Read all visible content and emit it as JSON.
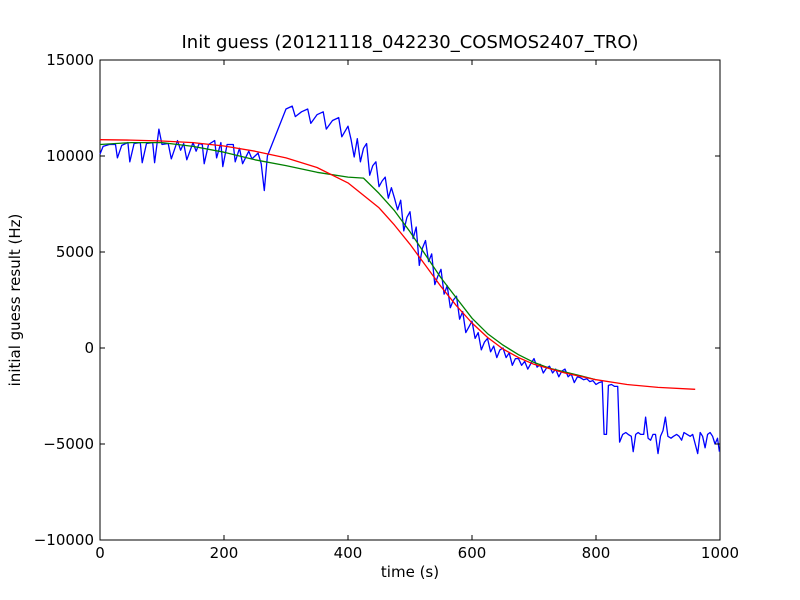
{
  "chart_data": {
    "type": "line",
    "title": "Init guess (20121118_042230_COSMOS2407_TRO)",
    "xlabel": "time (s)",
    "ylabel": "initial guess result (Hz)",
    "xlim": [
      0,
      1000
    ],
    "ylim": [
      -10000,
      15000
    ],
    "grid": false,
    "xticks": [
      0,
      200,
      400,
      600,
      800,
      1000
    ],
    "xtick_labels": [
      "0",
      "200",
      "400",
      "600",
      "800",
      "1000"
    ],
    "yticks": [
      15000,
      10000,
      5000,
      0,
      -5000,
      -10000
    ],
    "ytick_labels": [
      "15000",
      "10000",
      "5000",
      "0",
      "−5000",
      "−10000"
    ],
    "series": [
      {
        "color": "#0000ff",
        "points": [
          [
            0,
            10100
          ],
          [
            5,
            10500
          ],
          [
            15,
            10600
          ],
          [
            25,
            10600
          ],
          [
            28,
            9900
          ],
          [
            35,
            10550
          ],
          [
            45,
            10700
          ],
          [
            48,
            9700
          ],
          [
            55,
            10650
          ],
          [
            65,
            10700
          ],
          [
            68,
            9650
          ],
          [
            75,
            10650
          ],
          [
            85,
            10700
          ],
          [
            88,
            9650
          ],
          [
            95,
            11400
          ],
          [
            100,
            10600
          ],
          [
            110,
            10650
          ],
          [
            115,
            9850
          ],
          [
            125,
            10800
          ],
          [
            130,
            10300
          ],
          [
            135,
            10650
          ],
          [
            140,
            9800
          ],
          [
            150,
            10700
          ],
          [
            155,
            10250
          ],
          [
            160,
            10650
          ],
          [
            165,
            10600
          ],
          [
            168,
            9600
          ],
          [
            175,
            10600
          ],
          [
            185,
            10800
          ],
          [
            188,
            9900
          ],
          [
            195,
            10700
          ],
          [
            198,
            9450
          ],
          [
            205,
            10600
          ],
          [
            215,
            10600
          ],
          [
            218,
            9700
          ],
          [
            225,
            10400
          ],
          [
            230,
            9600
          ],
          [
            240,
            10250
          ],
          [
            245,
            9850
          ],
          [
            255,
            10150
          ],
          [
            260,
            9600
          ],
          [
            265,
            8200
          ],
          [
            270,
            10000
          ],
          [
            300,
            12450
          ],
          [
            310,
            12600
          ],
          [
            315,
            12050
          ],
          [
            325,
            12300
          ],
          [
            335,
            12450
          ],
          [
            340,
            11700
          ],
          [
            350,
            12150
          ],
          [
            360,
            12300
          ],
          [
            365,
            11400
          ],
          [
            375,
            11850
          ],
          [
            385,
            12000
          ],
          [
            390,
            11000
          ],
          [
            400,
            11550
          ],
          [
            405,
            10850
          ],
          [
            410,
            9950
          ],
          [
            415,
            10900
          ],
          [
            420,
            9700
          ],
          [
            425,
            10400
          ],
          [
            430,
            10650
          ],
          [
            435,
            9000
          ],
          [
            440,
            9500
          ],
          [
            445,
            9700
          ],
          [
            450,
            8400
          ],
          [
            455,
            8700
          ],
          [
            460,
            8900
          ],
          [
            465,
            7800
          ],
          [
            470,
            8350
          ],
          [
            475,
            7800
          ],
          [
            480,
            7200
          ],
          [
            485,
            7700
          ],
          [
            490,
            6100
          ],
          [
            495,
            6800
          ],
          [
            500,
            7100
          ],
          [
            505,
            5700
          ],
          [
            510,
            6300
          ],
          [
            515,
            4300
          ],
          [
            520,
            5200
          ],
          [
            525,
            5600
          ],
          [
            530,
            4500
          ],
          [
            535,
            4900
          ],
          [
            540,
            3300
          ],
          [
            545,
            3750
          ],
          [
            550,
            4100
          ],
          [
            555,
            2800
          ],
          [
            560,
            3250
          ],
          [
            565,
            2100
          ],
          [
            570,
            2500
          ],
          [
            575,
            2700
          ],
          [
            580,
            1500
          ],
          [
            585,
            1900
          ],
          [
            590,
            800
          ],
          [
            595,
            1100
          ],
          [
            600,
            1400
          ],
          [
            605,
            500
          ],
          [
            610,
            800
          ],
          [
            615,
            -100
          ],
          [
            620,
            300
          ],
          [
            625,
            500
          ],
          [
            630,
            -200
          ],
          [
            635,
            100
          ],
          [
            640,
            -500
          ],
          [
            645,
            -100
          ],
          [
            650,
            0
          ],
          [
            655,
            -500
          ],
          [
            660,
            -250
          ],
          [
            665,
            -900
          ],
          [
            670,
            -550
          ],
          [
            675,
            -550
          ],
          [
            680,
            -900
          ],
          [
            685,
            -700
          ],
          [
            690,
            -1100
          ],
          [
            695,
            -800
          ],
          [
            700,
            -550
          ],
          [
            705,
            -1000
          ],
          [
            710,
            -850
          ],
          [
            715,
            -1300
          ],
          [
            720,
            -1050
          ],
          [
            725,
            -950
          ],
          [
            730,
            -1300
          ],
          [
            735,
            -1100
          ],
          [
            740,
            -1500
          ],
          [
            745,
            -1200
          ],
          [
            750,
            -1100
          ],
          [
            755,
            -1500
          ],
          [
            760,
            -1350
          ],
          [
            765,
            -1800
          ],
          [
            770,
            -1500
          ],
          [
            775,
            -1550
          ],
          [
            780,
            -1650
          ],
          [
            785,
            -1600
          ],
          [
            790,
            -1750
          ],
          [
            795,
            -1700
          ],
          [
            800,
            -1900
          ],
          [
            805,
            -1800
          ],
          [
            810,
            -1750
          ],
          [
            813,
            -4500
          ],
          [
            817,
            -4500
          ],
          [
            820,
            -1950
          ],
          [
            825,
            -1900
          ],
          [
            830,
            -2000
          ],
          [
            835,
            -2000
          ],
          [
            838,
            -4900
          ],
          [
            843,
            -4500
          ],
          [
            848,
            -4400
          ],
          [
            852,
            -4500
          ],
          [
            857,
            -4600
          ],
          [
            860,
            -5400
          ],
          [
            864,
            -4500
          ],
          [
            868,
            -4400
          ],
          [
            872,
            -4500
          ],
          [
            877,
            -4500
          ],
          [
            880,
            -3600
          ],
          [
            884,
            -4700
          ],
          [
            888,
            -4800
          ],
          [
            892,
            -4500
          ],
          [
            896,
            -4500
          ],
          [
            900,
            -5500
          ],
          [
            904,
            -4600
          ],
          [
            908,
            -4300
          ],
          [
            912,
            -3600
          ],
          [
            916,
            -4600
          ],
          [
            921,
            -4700
          ],
          [
            925,
            -4600
          ],
          [
            930,
            -4500
          ],
          [
            934,
            -4600
          ],
          [
            938,
            -4800
          ],
          [
            942,
            -4400
          ],
          [
            947,
            -4500
          ],
          [
            952,
            -4600
          ],
          [
            956,
            -4500
          ],
          [
            960,
            -5000
          ],
          [
            964,
            -5500
          ],
          [
            968,
            -4400
          ],
          [
            972,
            -4600
          ],
          [
            976,
            -5200
          ],
          [
            980,
            -4500
          ],
          [
            984,
            -4400
          ],
          [
            988,
            -4600
          ],
          [
            992,
            -5000
          ],
          [
            996,
            -4700
          ],
          [
            999,
            -5400
          ]
        ]
      },
      {
        "color": "#008000",
        "points": [
          [
            0,
            10600
          ],
          [
            50,
            10700
          ],
          [
            100,
            10700
          ],
          [
            150,
            10500
          ],
          [
            200,
            10200
          ],
          [
            250,
            9800
          ],
          [
            300,
            9500
          ],
          [
            350,
            9150
          ],
          [
            400,
            8900
          ],
          [
            425,
            8850
          ],
          [
            450,
            8050
          ],
          [
            475,
            7150
          ],
          [
            500,
            6050
          ],
          [
            525,
            4850
          ],
          [
            550,
            3650
          ],
          [
            575,
            2600
          ],
          [
            600,
            1550
          ],
          [
            625,
            750
          ],
          [
            650,
            150
          ],
          [
            675,
            -350
          ],
          [
            700,
            -750
          ],
          [
            725,
            -1050
          ],
          [
            750,
            -1250
          ],
          [
            775,
            -1450
          ],
          [
            800,
            -1650
          ]
        ]
      },
      {
        "color": "#ff0000",
        "points": [
          [
            0,
            10850
          ],
          [
            50,
            10830
          ],
          [
            100,
            10780
          ],
          [
            150,
            10700
          ],
          [
            200,
            10520
          ],
          [
            250,
            10250
          ],
          [
            300,
            9900
          ],
          [
            350,
            9400
          ],
          [
            400,
            8600
          ],
          [
            450,
            7300
          ],
          [
            475,
            6400
          ],
          [
            500,
            5400
          ],
          [
            525,
            4300
          ],
          [
            550,
            3200
          ],
          [
            575,
            2200
          ],
          [
            600,
            1300
          ],
          [
            625,
            550
          ],
          [
            650,
            -50
          ],
          [
            675,
            -500
          ],
          [
            700,
            -850
          ],
          [
            750,
            -1300
          ],
          [
            800,
            -1650
          ],
          [
            850,
            -1900
          ],
          [
            900,
            -2050
          ],
          [
            960,
            -2150
          ]
        ]
      }
    ]
  }
}
